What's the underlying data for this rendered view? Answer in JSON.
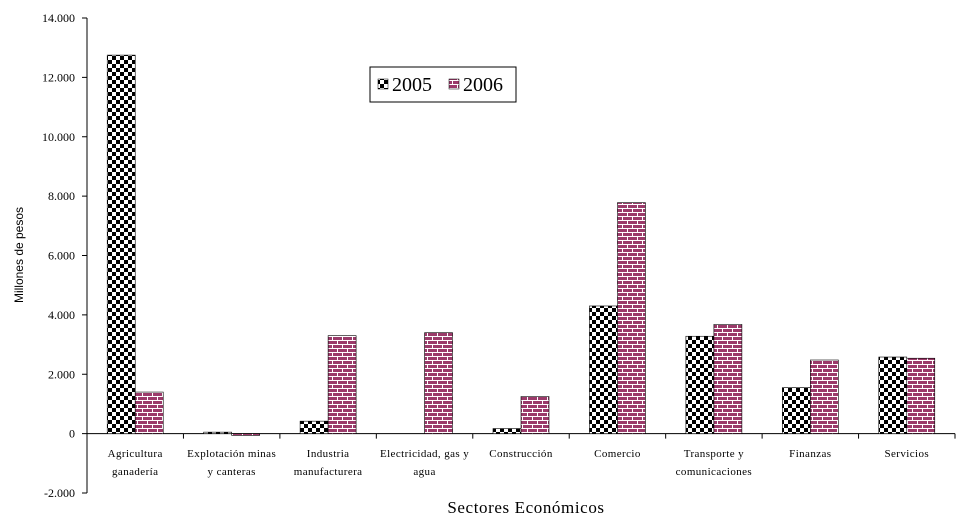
{
  "chart_data": {
    "type": "bar",
    "xlabel": "Sectores Económicos",
    "ylabel": "Millones de pesos",
    "ylim": [
      -2000,
      14000
    ],
    "ytick_step": 2000,
    "ytick_labels": [
      "-2.000",
      "0",
      "2.000",
      "4.000",
      "6.000",
      "8.000",
      "10.000",
      "12.000",
      "14.000"
    ],
    "grid": false,
    "legend_position": "top-center",
    "categories": [
      [
        "Agricultura",
        "ganadería"
      ],
      [
        "Explotación minas",
        "y canteras"
      ],
      [
        "Industria",
        "manufacturera"
      ],
      [
        "Electricidad, gas y",
        "agua"
      ],
      [
        "Construcción"
      ],
      [
        "Comercio"
      ],
      [
        "Transporte y",
        "comunicaciones"
      ],
      [
        "Finanzas"
      ],
      [
        "Servicios"
      ]
    ],
    "series": [
      {
        "name": "2005",
        "pattern": "checker",
        "color": "#000000",
        "values": [
          12750,
          50,
          420,
          0,
          170,
          4300,
          3280,
          1550,
          2580
        ]
      },
      {
        "name": "2006",
        "pattern": "brick",
        "color": "#9b3a6a",
        "values": [
          1400,
          -60,
          3300,
          3400,
          1250,
          7780,
          3680,
          2480,
          2540
        ]
      }
    ]
  }
}
